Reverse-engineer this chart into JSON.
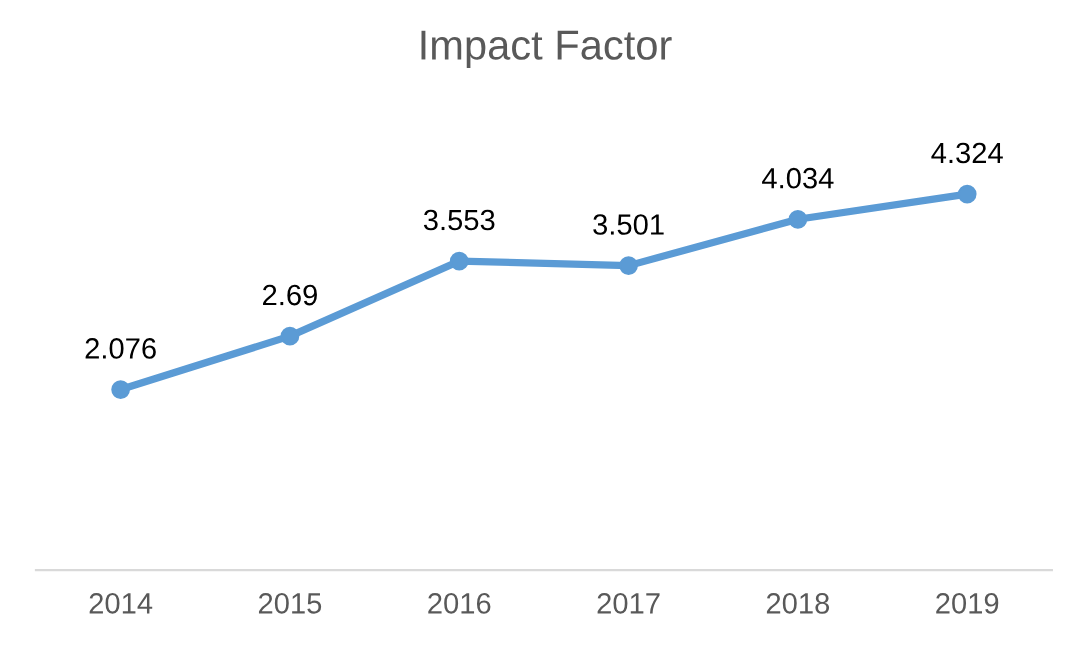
{
  "chart_data": {
    "type": "line",
    "title": "Impact Factor",
    "categories": [
      "2014",
      "2015",
      "2016",
      "2017",
      "2018",
      "2019"
    ],
    "series": [
      {
        "color": "#5b9bd5",
        "values": [
          2.076,
          2.69,
          3.553,
          3.501,
          4.034,
          4.324
        ]
      }
    ],
    "data_labels": true,
    "marker": "circle",
    "line_style": "solid",
    "grid": false,
    "legend": false,
    "tick_labels": "x"
  }
}
